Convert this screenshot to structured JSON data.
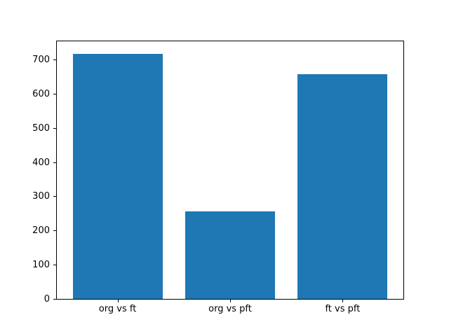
{
  "figure": {
    "background": "#ffffff",
    "spine_color": "#000000",
    "text_color": "#000000"
  },
  "chart_data": {
    "type": "bar",
    "categories": [
      "org vs ft",
      "org vs pft",
      "ft vs pft"
    ],
    "values": [
      717,
      256,
      656
    ],
    "title": "",
    "xlabel": "",
    "ylabel": "",
    "ylim": [
      0,
      752.85
    ],
    "xlim": [
      -0.54,
      2.54
    ],
    "yticks": [
      0,
      100,
      200,
      300,
      400,
      500,
      600,
      700
    ],
    "bar_color": "#1f77b4",
    "bar_width_fraction": 0.8,
    "grid": false,
    "legend_position": "none"
  }
}
